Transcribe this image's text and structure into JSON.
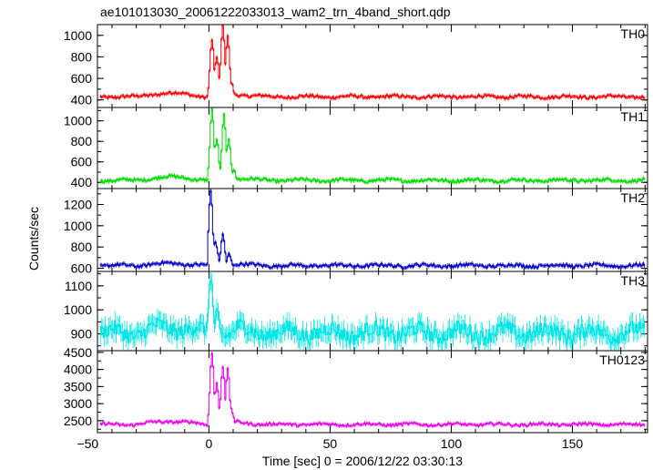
{
  "title": "ae101013030_20061222033013_wam2_trn_4band_short.qdp",
  "chart_data": {
    "type": "line",
    "xlabel": "Time [sec] 0 = 2006/12/22 03:30:13",
    "ylabel": "Counts/sec",
    "xlim": [
      -46,
      181
    ],
    "x_ticks": [
      -50,
      0,
      50,
      100,
      150
    ],
    "x_tick_labels": [
      "−50",
      "0",
      "50",
      "100",
      "150"
    ],
    "panels": [
      {
        "name": "TH0",
        "color": "#ff0000",
        "ylim": [
          330,
          1100
        ],
        "y_ticks": [
          400,
          600,
          800,
          1000
        ],
        "baseline": 430,
        "pre_hump": 470,
        "noise": 14,
        "peaks": [
          {
            "x": 1.0,
            "y": 960
          },
          {
            "x": 3.0,
            "y": 800
          },
          {
            "x": 5.5,
            "y": 1080
          },
          {
            "x": 7.5,
            "y": 1000
          },
          {
            "x": 9.0,
            "y": 560
          }
        ]
      },
      {
        "name": "TH1",
        "color": "#00dd00",
        "ylim": [
          340,
          1130
        ],
        "y_ticks": [
          400,
          600,
          800,
          1000
        ],
        "baseline": 420,
        "pre_hump": 460,
        "noise": 15,
        "peaks": [
          {
            "x": 1.0,
            "y": 1120
          },
          {
            "x": 3.0,
            "y": 820
          },
          {
            "x": 6.0,
            "y": 1060
          },
          {
            "x": 8.0,
            "y": 820
          },
          {
            "x": 10.0,
            "y": 540
          }
        ]
      },
      {
        "name": "TH2",
        "color": "#0000cc",
        "ylim": [
          570,
          1350
        ],
        "y_ticks": [
          600,
          800,
          1000,
          1200
        ],
        "baseline": 625,
        "pre_hump": 650,
        "noise": 15,
        "peaks": [
          {
            "x": 0.5,
            "y": 1320
          },
          {
            "x": 2.5,
            "y": 850
          },
          {
            "x": 5.5,
            "y": 920
          },
          {
            "x": 8.0,
            "y": 740
          }
        ]
      },
      {
        "name": "TH3",
        "color": "#00e5e5",
        "ylim": [
          830,
          1160
        ],
        "y_ticks": [
          900,
          1000,
          1100
        ],
        "baseline": 905,
        "pre_hump": 930,
        "noise": 32,
        "peaks": [
          {
            "x": 0.5,
            "y": 1150
          },
          {
            "x": 3.0,
            "y": 1000
          }
        ]
      },
      {
        "name": "TH0123",
        "color": "#ee00ee",
        "ylim": [
          2150,
          4550
        ],
        "y_ticks": [
          2500,
          3000,
          3500,
          4000,
          4500
        ],
        "baseline": 2390,
        "pre_hump": 2500,
        "noise": 40,
        "peaks": [
          {
            "x": 1.0,
            "y": 4500
          },
          {
            "x": 3.0,
            "y": 3600
          },
          {
            "x": 5.5,
            "y": 4100
          },
          {
            "x": 7.5,
            "y": 4000
          },
          {
            "x": 9.0,
            "y": 2800
          }
        ]
      }
    ]
  }
}
